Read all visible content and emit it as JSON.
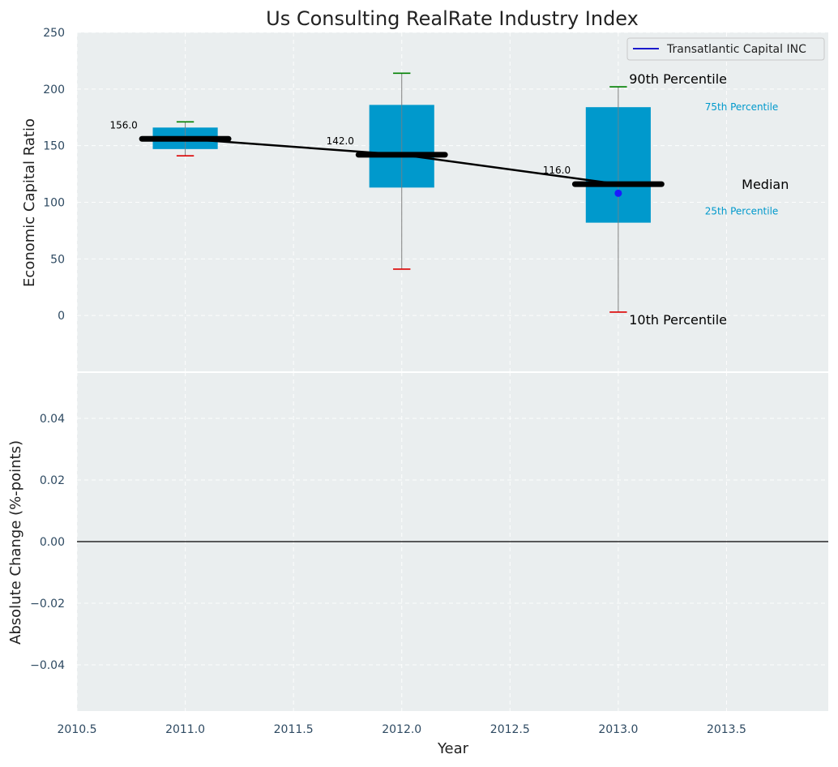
{
  "chart_data": {
    "type": "box",
    "title": "Us Consulting RealRate Industry Index",
    "xlabel": "Year",
    "x_ticks": [
      "2010.5",
      "2011.0",
      "2011.5",
      "2012.0",
      "2012.5",
      "2013.0",
      "2013.5"
    ],
    "x_tick_values": [
      2010.5,
      2011.0,
      2011.5,
      2012.0,
      2012.5,
      2013.0,
      2013.5
    ],
    "xlim": [
      2010.5,
      2013.97
    ],
    "grid": true,
    "panels": [
      {
        "ylabel": "Economic Capital Ratio",
        "ylim": [
          -50,
          250
        ],
        "y_ticks": [
          "0",
          "50",
          "100",
          "150",
          "200",
          "250"
        ],
        "y_tick_values": [
          0,
          50,
          100,
          150,
          200,
          250
        ],
        "boxes": [
          {
            "year": 2011,
            "p10": 141,
            "p25": 147,
            "median": 156,
            "p75": 166,
            "p90": 171,
            "median_label": "156.0"
          },
          {
            "year": 2012,
            "p10": 41,
            "p25": 113,
            "median": 142,
            "p75": 186,
            "p90": 214,
            "median_label": "142.0"
          },
          {
            "year": 2013,
            "p10": 3,
            "p25": 82,
            "median": 116,
            "p75": 184,
            "p90": 202,
            "median_label": "116.0"
          }
        ],
        "company_series": {
          "name": "Transatlantic Capital INC",
          "points": [
            {
              "year": 2013,
              "value": 108
            }
          ]
        },
        "legend": {
          "position": "top-right",
          "entries": [
            "Transatlantic Capital INC"
          ]
        },
        "annotations": {
          "p90": "90th Percentile",
          "p75": "75th Percentile",
          "median": "Median",
          "p25": "25th Percentile",
          "p10": "10th Percentile"
        }
      },
      {
        "ylabel": "Absolute Change (%-points)",
        "ylim": [
          -0.055,
          0.055
        ],
        "y_ticks": [
          "−0.04",
          "−0.02",
          "0.00",
          "0.02",
          "0.04"
        ],
        "y_tick_values": [
          -0.04,
          -0.02,
          0.0,
          0.02,
          0.04
        ],
        "zero_line": true
      }
    ]
  },
  "colors": {
    "plot_bg": "#eaeeef",
    "box_fill": "#0099cc",
    "median_line": "#000000",
    "whisker_top": "#008000",
    "whisker_bottom": "#dd0000",
    "whisker_line": "#808080",
    "company_marker": "#1a1aff",
    "legend_line": "#1a1acc",
    "tick_text": "#2e4a62",
    "annotation_small": "#0099cc"
  }
}
